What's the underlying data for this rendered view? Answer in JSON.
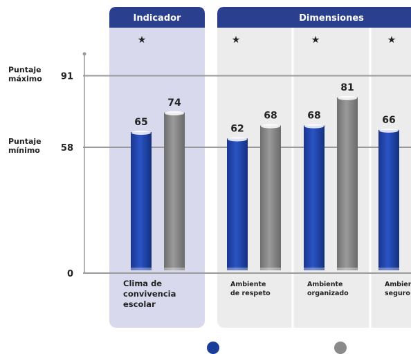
{
  "chart_data": {
    "type": "bar",
    "y_ticks": [
      {
        "value": 0,
        "label": "0",
        "name_lines": []
      },
      {
        "value": 58,
        "label": "58",
        "name_lines": [
          "Puntaje",
          "mínimo"
        ]
      },
      {
        "value": 91,
        "label": "91",
        "name_lines": [
          "Puntaje",
          "máximo"
        ]
      }
    ],
    "ylim": [
      0,
      100
    ],
    "grid": "reference lines at 0, 58, 91",
    "groups": [
      {
        "header": "Indicador",
        "color": "#2b3f8f",
        "bg": "#d9d9ee",
        "star": "★"
      },
      {
        "header": "Dimensiones",
        "color": "#2b3f8f",
        "bg": "#ececec",
        "star": "★"
      }
    ],
    "categories": [
      {
        "lines": [
          "Clima de",
          "convivencia",
          "escolar"
        ],
        "group": 0
      },
      {
        "lines": [
          "Ambiente",
          "de respeto"
        ],
        "group": 1
      },
      {
        "lines": [
          "Ambiente",
          "organizado"
        ],
        "group": 1
      },
      {
        "lines": [
          "Ambiente",
          "seguro"
        ],
        "group": 1
      }
    ],
    "series": [
      {
        "color": "#1a3d99",
        "values": [
          65,
          62,
          68,
          66
        ]
      },
      {
        "color": "#8a8a8a",
        "values": [
          74,
          68,
          81,
          null
        ]
      }
    ],
    "stars": [
      "★",
      "★",
      "★",
      "★"
    ],
    "legend_position": "bottom"
  }
}
